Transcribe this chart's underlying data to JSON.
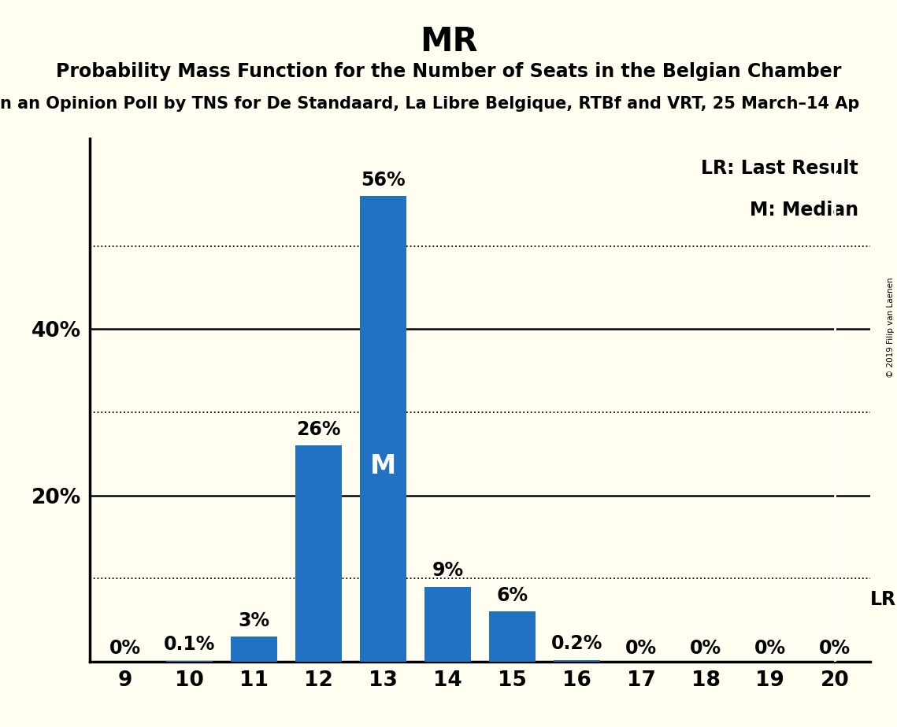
{
  "title": "MR",
  "subtitle": "Probability Mass Function for the Number of Seats in the Belgian Chamber",
  "subtitle2": "n an Opinion Poll by TNS for De Standaard, La Libre Belgique, RTBf and VRT, 25 March–14 Ap",
  "copyright": "© 2019 Filip van Laenen",
  "categories": [
    9,
    10,
    11,
    12,
    13,
    14,
    15,
    16,
    17,
    18,
    19,
    20
  ],
  "values": [
    0.0,
    0.1,
    3.0,
    26.0,
    56.0,
    9.0,
    6.0,
    0.2,
    0.0,
    0.0,
    0.0,
    0.0
  ],
  "labels": [
    "0%",
    "0.1%",
    "3%",
    "26%",
    "56%",
    "9%",
    "6%",
    "0.2%",
    "0%",
    "0%",
    "0%",
    "0%"
  ],
  "bar_color": "#2272C3",
  "background_color": "#FFFEF0",
  "median_bar": 13,
  "last_result_bar": 20,
  "ylim": [
    0,
    63
  ],
  "legend_lr": "LR: Last Result",
  "legend_m": "M: Median",
  "title_fontsize": 30,
  "subtitle_fontsize": 17,
  "subtitle2_fontsize": 15,
  "axis_fontsize": 19,
  "bar_label_fontsize": 17,
  "legend_fontsize": 17
}
